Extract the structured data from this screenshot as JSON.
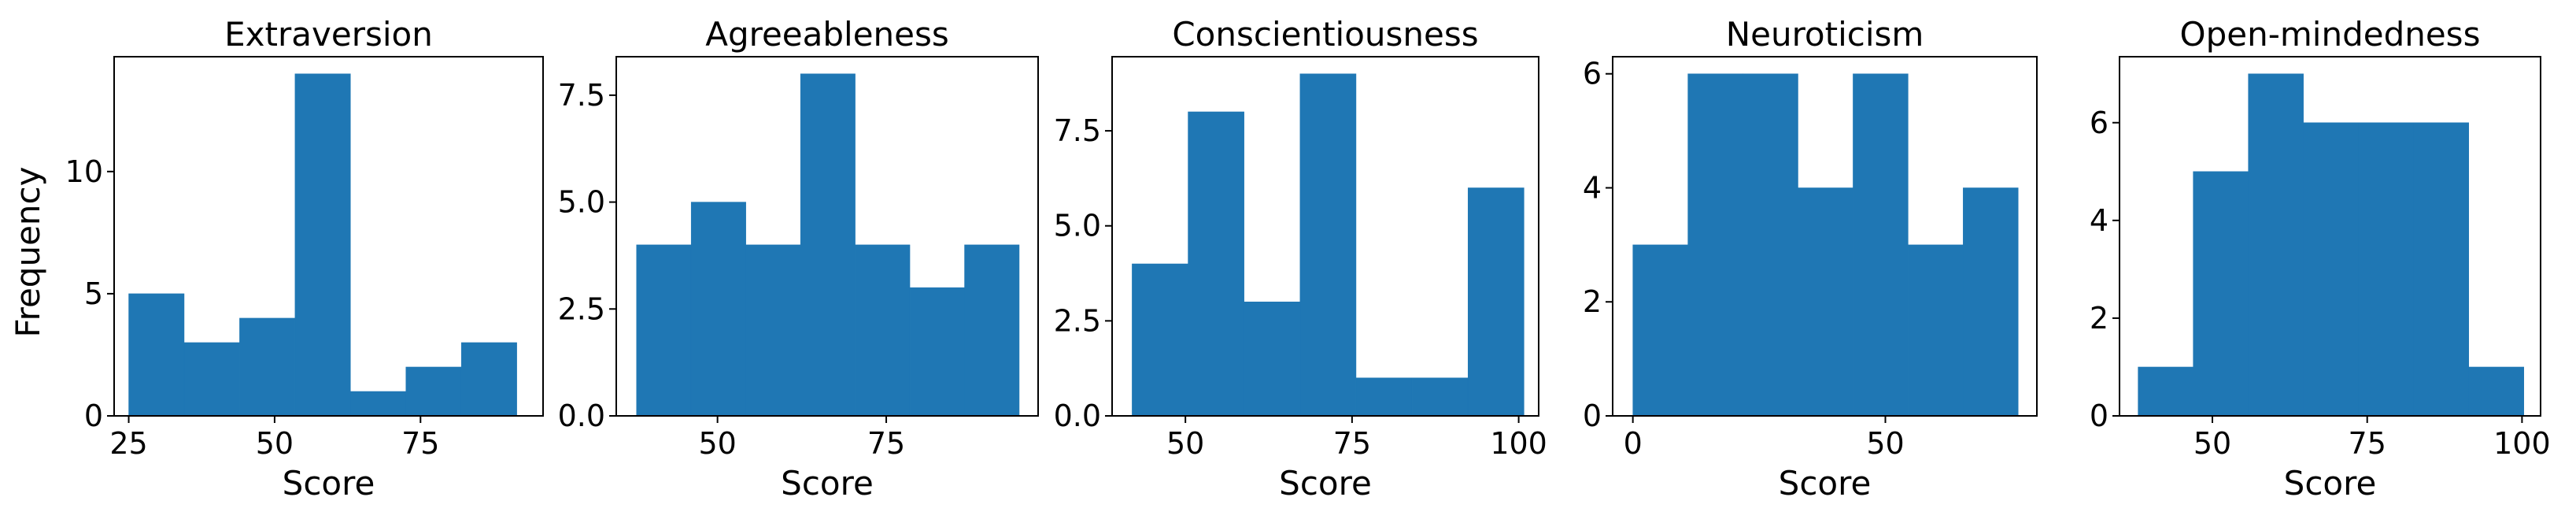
{
  "figure": {
    "shared_ylabel": "Frequency",
    "bar_color": "#1f77b4"
  },
  "chart_data": [
    {
      "type": "bar",
      "title": "Extraversion",
      "xlabel": "Score",
      "ylabel": "Frequency",
      "xlim": [
        22.5,
        96
      ],
      "ylim": [
        0,
        14.7
      ],
      "xticks": [
        25,
        50,
        75
      ],
      "yticks": [
        0,
        5,
        10
      ],
      "ytick_labels": [
        "0",
        "5",
        "10"
      ],
      "bin_edges": [
        25,
        34.5,
        44,
        53.5,
        63,
        72.5,
        82,
        91.5
      ],
      "values": [
        5,
        3,
        4,
        14,
        1,
        2,
        3
      ],
      "grid": false
    },
    {
      "type": "bar",
      "title": "Agreeableness",
      "xlabel": "Score",
      "ylabel": "",
      "xlim": [
        35,
        97.5
      ],
      "ylim": [
        0,
        8.4
      ],
      "xticks": [
        50,
        75
      ],
      "yticks": [
        0,
        2.5,
        5,
        7.5
      ],
      "ytick_labels": [
        "0.0",
        "2.5",
        "5.0",
        "7.5"
      ],
      "bin_edges": [
        38,
        46.1,
        54.2,
        62.3,
        70.4,
        78.5,
        86.6,
        94.7
      ],
      "values": [
        4,
        5,
        4,
        8,
        4,
        3,
        4
      ],
      "grid": false
    },
    {
      "type": "bar",
      "title": "Conscientiousness",
      "xlabel": "Score",
      "ylabel": "",
      "xlim": [
        39,
        103
      ],
      "ylim": [
        0,
        9.45
      ],
      "xticks": [
        50,
        75,
        100
      ],
      "yticks": [
        0,
        2.5,
        5,
        7.5
      ],
      "ytick_labels": [
        "0.0",
        "2.5",
        "5.0",
        "7.5"
      ],
      "bin_edges": [
        42,
        50.4,
        58.8,
        67.2,
        75.6,
        84,
        92.4,
        100.8
      ],
      "values": [
        4,
        8,
        3,
        9,
        1,
        1,
        6
      ],
      "grid": false
    },
    {
      "type": "bar",
      "title": "Neuroticism",
      "xlabel": "Score",
      "ylabel": "",
      "xlim": [
        -4,
        80
      ],
      "ylim": [
        0,
        6.3
      ],
      "xticks": [
        0,
        50
      ],
      "yticks": [
        0,
        2,
        4,
        6
      ],
      "ytick_labels": [
        "0",
        "2",
        "4",
        "6"
      ],
      "bin_edges": [
        0,
        10.9,
        21.8,
        32.7,
        43.6,
        54.5,
        65.4,
        76.3
      ],
      "values": [
        3,
        6,
        6,
        4,
        6,
        3,
        4
      ],
      "grid": false
    },
    {
      "type": "bar",
      "title": "Open-mindedness",
      "xlabel": "Score",
      "ylabel": "",
      "xlim": [
        35,
        103
      ],
      "ylim": [
        0,
        7.35
      ],
      "xticks": [
        50,
        75,
        100
      ],
      "yticks": [
        0,
        2,
        4,
        6
      ],
      "ytick_labels": [
        "0",
        "2",
        "4",
        "6"
      ],
      "bin_edges": [
        38,
        46.9,
        55.8,
        64.7,
        73.6,
        82.5,
        91.4,
        100.3
      ],
      "values": [
        1,
        5,
        7,
        6,
        6,
        6,
        1
      ],
      "grid": false
    }
  ]
}
